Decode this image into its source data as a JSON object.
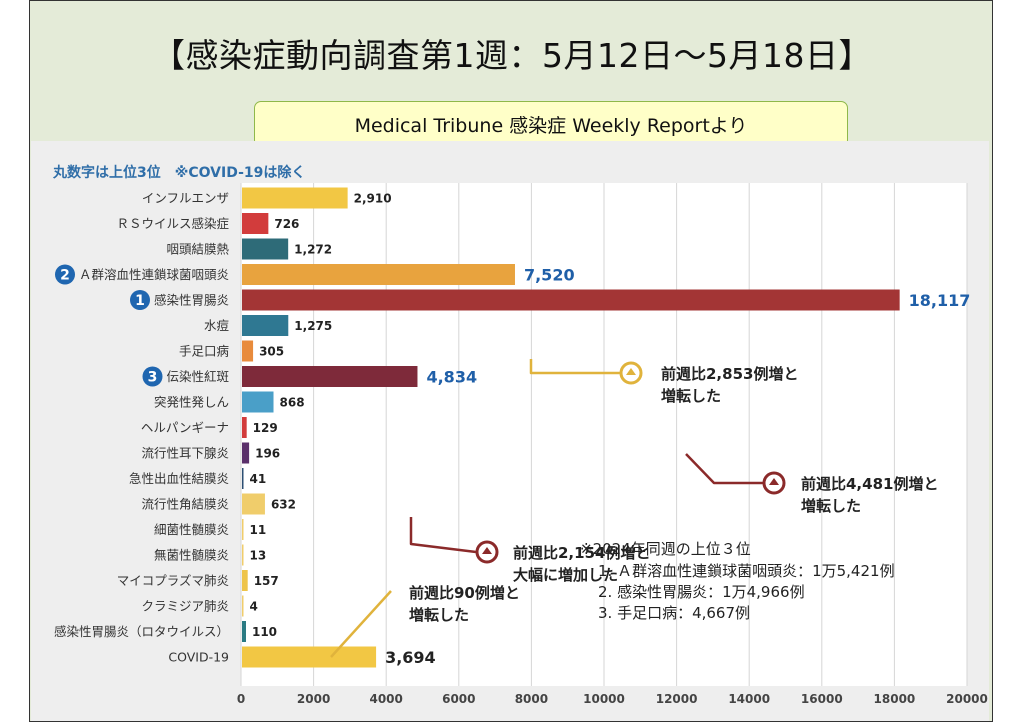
{
  "slide": {
    "title": "【感染症動向調査第1週：5月12日～5月18日】",
    "subtitle": "Medical Tribune 感染症 Weekly Reportより"
  },
  "colors": {
    "yellow": "#f2c744",
    "red": "#d23c3c",
    "teal_dark": "#2e6b78",
    "orange": "#e8a33e",
    "crimson": "#a33535",
    "teal": "#2f7892",
    "orange_light": "#e88b3c",
    "maroon": "#7e2a3a",
    "sky": "#4a9fc8",
    "purple": "#5a2f6a",
    "navy": "#2d4f73",
    "sand": "#f0cd6b",
    "gold": "#eec44b",
    "seagreen": "#2a7a82",
    "rank_badge": "#1f66b0",
    "value_highlight": "#1f5fa8",
    "annotation_line_gold": "#e0b33c",
    "annotation_line_red": "#8b2a2a"
  },
  "chart_data": {
    "type": "bar",
    "orientation": "horizontal",
    "title": "",
    "note": "丸数字は上位3位　※COVID-19は除く",
    "xlabel": "",
    "ylabel": "",
    "xlim": [
      0,
      20000
    ],
    "x_ticks": [
      0,
      2000,
      4000,
      6000,
      8000,
      10000,
      12000,
      14000,
      16000,
      18000,
      20000
    ],
    "grid": true,
    "categories": [
      "インフルエンザ",
      "ＲＳウイルス感染症",
      "咽頭結膜熱",
      "Ａ群溶血性連鎖球菌咽頭炎",
      "感染性胃腸炎",
      "水痘",
      "手足口病",
      "伝染性紅斑",
      "突発性発しん",
      "ヘルパンギーナ",
      "流行性耳下腺炎",
      "急性出血性結膜炎",
      "流行性角結膜炎",
      "細菌性髄膜炎",
      "無菌性髄膜炎",
      "マイコプラズマ肺炎",
      "クラミジア肺炎",
      "感染性胃腸炎（ロタウイルス）",
      "COVID-19"
    ],
    "values": [
      2910,
      726,
      1272,
      7520,
      18117,
      1275,
      305,
      4834,
      868,
      129,
      196,
      41,
      632,
      11,
      13,
      157,
      4,
      110,
      3694
    ],
    "value_labels": [
      "2,910",
      "726",
      "1,272",
      "7,520",
      "18,117",
      "1,275",
      "305",
      "4,834",
      "868",
      "129",
      "196",
      "41",
      "632",
      "11",
      "13",
      "157",
      "4",
      "110",
      "3,694"
    ],
    "bar_colors": [
      "yellow",
      "red",
      "teal_dark",
      "orange",
      "crimson",
      "teal",
      "orange_light",
      "maroon",
      "sky",
      "red",
      "purple",
      "navy",
      "sand",
      "sand",
      "sand",
      "gold",
      "sand",
      "seagreen",
      "yellow"
    ],
    "ranks": [
      {
        "category_index": 4,
        "rank": "1"
      },
      {
        "category_index": 3,
        "rank": "2"
      },
      {
        "category_index": 7,
        "rank": "3"
      }
    ],
    "highlighted_values": [
      3,
      4,
      7,
      18
    ],
    "annotations": [
      {
        "category_index": 3,
        "lines": [
          "前週比2,853例増と",
          "増転した"
        ],
        "color": "annotation_line_gold"
      },
      {
        "category_index": 4,
        "lines": [
          "前週比4,481例増と",
          "増転した"
        ],
        "color": "annotation_line_red"
      },
      {
        "category_index": 7,
        "lines": [
          "前週比2,154例増と",
          "大幅に増加した"
        ],
        "color": "annotation_line_red"
      },
      {
        "category_index": 18,
        "lines": [
          "前週比90例増と",
          "増転した"
        ],
        "color": "annotation_line_gold"
      }
    ],
    "comparison": {
      "heading": "※2024年同週の上位３位",
      "items": [
        "1. Ａ群溶血性連鎖球菌咽頭炎：1万5,421例",
        "2. 感染性胃腸炎：1万4,966例",
        "3. 手足口病：4,667例"
      ]
    }
  }
}
